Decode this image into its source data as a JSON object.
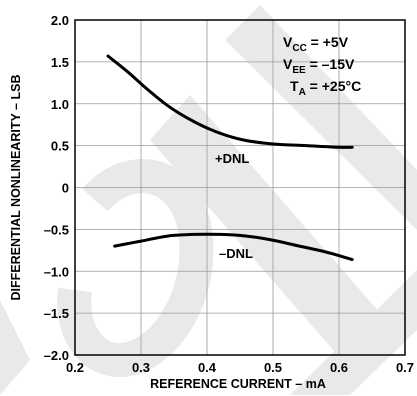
{
  "chart_data": {
    "type": "line",
    "xlabel": "REFERENCE CURRENT – mA",
    "ylabel": "DIFFERENTIAL NONLINEARITY – LSB",
    "xlim": [
      0.2,
      0.7
    ],
    "ylim": [
      -2.0,
      2.0
    ],
    "x_ticks": [
      0.2,
      0.3,
      0.4,
      0.5,
      0.6,
      0.7
    ],
    "x_tick_labels": [
      "0.2",
      "0.3",
      "0.4",
      "0.5",
      "0.6",
      "0.7"
    ],
    "y_ticks": [
      2.0,
      1.5,
      1.0,
      0.5,
      0,
      -0.5,
      -1.0,
      -1.5,
      -2.0
    ],
    "y_tick_labels": [
      "2.0",
      "1.5",
      "1.0",
      "0.5",
      "0",
      "–0.5",
      "–1.0",
      "–1.5",
      "–2.0"
    ],
    "grid": true,
    "series": [
      {
        "name": "+DNL",
        "x": [
          0.25,
          0.28,
          0.31,
          0.34,
          0.37,
          0.4,
          0.43,
          0.46,
          0.5,
          0.55,
          0.6,
          0.62
        ],
        "y": [
          1.57,
          1.38,
          1.17,
          0.98,
          0.83,
          0.71,
          0.62,
          0.56,
          0.52,
          0.5,
          0.48,
          0.48
        ]
      },
      {
        "name": "–DNL",
        "x": [
          0.26,
          0.3,
          0.34,
          0.38,
          0.42,
          0.46,
          0.5,
          0.54,
          0.58,
          0.62
        ],
        "y": [
          -0.7,
          -0.64,
          -0.58,
          -0.56,
          -0.56,
          -0.58,
          -0.63,
          -0.7,
          -0.77,
          -0.86
        ]
      }
    ],
    "annotations": {
      "vcc_main": "V",
      "vcc_sub": "CC",
      "vcc_value": " = +5V",
      "vee_main": "V",
      "vee_sub": "EE",
      "vee_value": " = –15V",
      "ta_main": "T",
      "ta_sub": "A",
      "ta_value": " = +25°C"
    }
  }
}
